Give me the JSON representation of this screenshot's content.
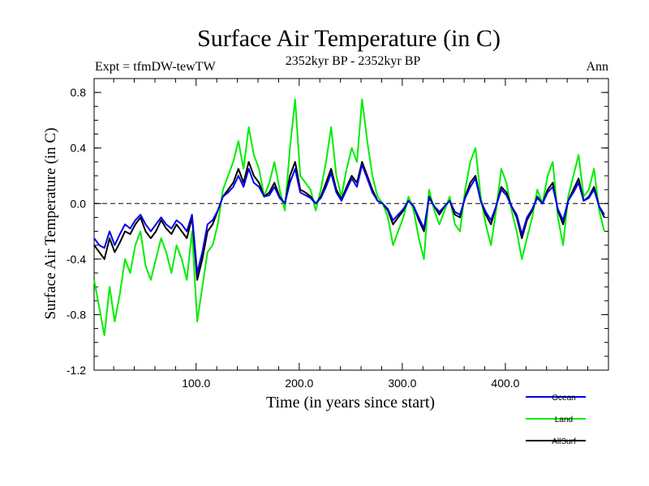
{
  "chart_data": {
    "type": "line",
    "title": "Surface Air Temperature (in C)",
    "subtitle_left": "Expt = tfmDW-tewTW",
    "subtitle_center": "2352kyr BP - 2352kyr BP",
    "subtitle_right": "Ann",
    "xlabel": "Time (in years since start)",
    "ylabel": "Surface Air Temperature (in C)",
    "xlim": [
      1,
      500
    ],
    "ylim": [
      -1.2,
      0.9
    ],
    "x_ticks": [
      100,
      200,
      300,
      400
    ],
    "x_tick_labels": [
      "100.0",
      "200.0",
      "300.0",
      "400.0"
    ],
    "y_ticks": [
      -1.2,
      -0.8,
      -0.4,
      0.0,
      0.4,
      0.8
    ],
    "y_tick_labels": [
      "-1.2",
      "-0.8",
      "-0.4",
      "0.0",
      "0.4",
      "0.8"
    ],
    "reference_line": 0.0,
    "legend_position": "bottom-right",
    "series": [
      {
        "name": "Land",
        "color": "#00ee00",
        "x_start": 1,
        "x_step": 5,
        "values": [
          -0.55,
          -0.75,
          -0.95,
          -0.6,
          -0.85,
          -0.65,
          -0.4,
          -0.5,
          -0.3,
          -0.2,
          -0.45,
          -0.55,
          -0.4,
          -0.25,
          -0.35,
          -0.5,
          -0.3,
          -0.4,
          -0.55,
          -0.2,
          -0.85,
          -0.6,
          -0.35,
          -0.3,
          -0.15,
          0.1,
          0.2,
          0.3,
          0.45,
          0.25,
          0.55,
          0.35,
          0.25,
          0.05,
          0.15,
          0.3,
          0.1,
          -0.05,
          0.4,
          0.75,
          0.2,
          0.15,
          0.1,
          -0.05,
          0.1,
          0.3,
          0.55,
          0.2,
          0.05,
          0.25,
          0.4,
          0.3,
          0.75,
          0.45,
          0.2,
          0.05,
          0.0,
          -0.1,
          -0.3,
          -0.2,
          -0.1,
          0.05,
          -0.05,
          -0.25,
          -0.4,
          0.1,
          -0.05,
          -0.15,
          -0.05,
          0.05,
          -0.15,
          -0.2,
          0.1,
          0.3,
          0.4,
          0.05,
          -0.15,
          -0.3,
          -0.05,
          0.25,
          0.15,
          -0.05,
          -0.2,
          -0.4,
          -0.25,
          -0.1,
          0.1,
          0.0,
          0.2,
          0.3,
          -0.1,
          -0.3,
          0.05,
          0.2,
          0.35,
          0.05,
          0.1,
          0.25,
          -0.05,
          -0.2
        ]
      },
      {
        "name": "AllSurf",
        "color": "#000000",
        "x_start": 1,
        "x_step": 5,
        "values": [
          -0.3,
          -0.35,
          -0.4,
          -0.25,
          -0.35,
          -0.28,
          -0.2,
          -0.22,
          -0.15,
          -0.1,
          -0.2,
          -0.25,
          -0.2,
          -0.12,
          -0.18,
          -0.22,
          -0.15,
          -0.2,
          -0.25,
          -0.1,
          -0.55,
          -0.4,
          -0.2,
          -0.15,
          -0.05,
          0.05,
          0.1,
          0.15,
          0.25,
          0.15,
          0.3,
          0.2,
          0.15,
          0.05,
          0.08,
          0.15,
          0.05,
          0.0,
          0.2,
          0.3,
          0.1,
          0.08,
          0.05,
          0.0,
          0.05,
          0.15,
          0.25,
          0.1,
          0.03,
          0.12,
          0.2,
          0.15,
          0.3,
          0.2,
          0.1,
          0.02,
          0.0,
          -0.05,
          -0.15,
          -0.1,
          -0.05,
          0.02,
          -0.02,
          -0.12,
          -0.2,
          0.05,
          -0.02,
          -0.08,
          -0.02,
          0.02,
          -0.08,
          -0.1,
          0.05,
          0.15,
          0.2,
          0.02,
          -0.08,
          -0.15,
          -0.02,
          0.12,
          0.08,
          -0.02,
          -0.1,
          -0.25,
          -0.12,
          -0.05,
          0.05,
          0.0,
          0.1,
          0.15,
          -0.05,
          -0.15,
          0.02,
          0.1,
          0.18,
          0.02,
          0.05,
          0.12,
          -0.02,
          -0.1
        ]
      },
      {
        "name": "Ocean",
        "color": "#0000ee",
        "x_start": 1,
        "x_step": 5,
        "values": [
          -0.25,
          -0.3,
          -0.32,
          -0.2,
          -0.3,
          -0.22,
          -0.15,
          -0.18,
          -0.12,
          -0.08,
          -0.15,
          -0.2,
          -0.15,
          -0.1,
          -0.15,
          -0.18,
          -0.12,
          -0.15,
          -0.2,
          -0.08,
          -0.5,
          -0.35,
          -0.15,
          -0.12,
          -0.05,
          0.05,
          0.08,
          0.12,
          0.2,
          0.12,
          0.25,
          0.15,
          0.12,
          0.05,
          0.06,
          0.12,
          0.04,
          0.0,
          0.15,
          0.25,
          0.08,
          0.06,
          0.04,
          0.0,
          0.04,
          0.12,
          0.22,
          0.08,
          0.02,
          0.1,
          0.18,
          0.12,
          0.28,
          0.18,
          0.08,
          0.02,
          0.0,
          -0.04,
          -0.12,
          -0.08,
          -0.04,
          0.02,
          -0.02,
          -0.1,
          -0.18,
          0.04,
          -0.02,
          -0.06,
          -0.02,
          0.02,
          -0.06,
          -0.08,
          0.04,
          0.12,
          0.18,
          0.02,
          -0.06,
          -0.12,
          -0.02,
          0.1,
          0.06,
          -0.02,
          -0.08,
          -0.22,
          -0.1,
          -0.04,
          0.04,
          0.0,
          0.08,
          0.12,
          -0.04,
          -0.12,
          0.02,
          0.08,
          0.15,
          0.02,
          0.04,
          0.1,
          -0.02,
          -0.08
        ]
      }
    ],
    "legend": [
      "Ocean",
      "Land",
      "AllSurf"
    ]
  }
}
